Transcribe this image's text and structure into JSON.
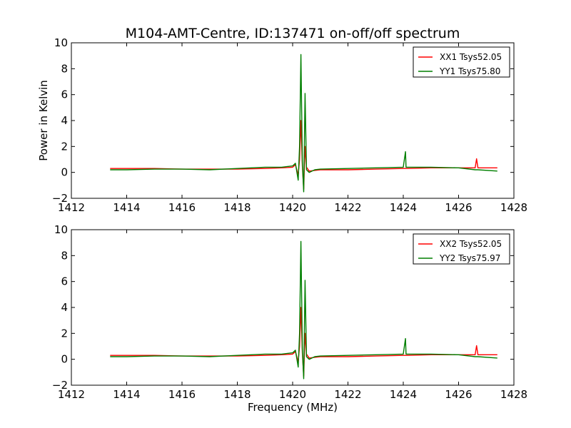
{
  "figure": {
    "title": "M104-AMT-Centre, ID:137471 on-off/off spectrum",
    "ylabel": "Power in Kelvin",
    "xlabel": "Frequency (MHz)"
  },
  "colors": {
    "xx": "#ff0000",
    "yy": "#007f00"
  },
  "chart_data": [
    {
      "type": "line",
      "title": "M104-AMT-Centre, ID:137471 on-off/off spectrum",
      "ylabel": "Power in Kelvin",
      "xlabel": "",
      "xlim": [
        1412,
        1428
      ],
      "ylim": [
        -2,
        10
      ],
      "xticks": [
        "1412",
        "1414",
        "1416",
        "1418",
        "1420",
        "1422",
        "1424",
        "1426",
        "1428"
      ],
      "yticks": [
        "−2",
        "0",
        "2",
        "4",
        "6",
        "8",
        "10"
      ],
      "legend_position": "top-right",
      "grid": false,
      "series": [
        {
          "name": "XX1 Tsys52.05",
          "color": "#ff0000",
          "x": [
            1413.4,
            1414,
            1415,
            1416,
            1417,
            1418,
            1419,
            1419.6,
            1420.0,
            1420.1,
            1420.2,
            1420.25,
            1420.3,
            1420.35,
            1420.4,
            1420.45,
            1420.5,
            1420.6,
            1420.8,
            1421,
            1422,
            1423,
            1424,
            1424.08,
            1424.1,
            1424.15,
            1425,
            1426,
            1426.6,
            1426.65,
            1426.7,
            1427.4
          ],
          "y": [
            0.3,
            0.3,
            0.3,
            0.25,
            0.25,
            0.25,
            0.3,
            0.35,
            0.4,
            0.6,
            -0.2,
            1.0,
            4.0,
            0.5,
            -1.3,
            2.0,
            0.4,
            0.1,
            0.15,
            0.2,
            0.2,
            0.25,
            0.3,
            0.3,
            0.3,
            0.3,
            0.35,
            0.35,
            0.35,
            1.05,
            0.35,
            0.35
          ]
        },
        {
          "name": "YY1 Tsys75.80",
          "color": "#007f00",
          "x": [
            1413.4,
            1414,
            1415,
            1416,
            1417,
            1418,
            1419,
            1419.6,
            1420.0,
            1420.1,
            1420.2,
            1420.25,
            1420.3,
            1420.35,
            1420.4,
            1420.45,
            1420.5,
            1420.6,
            1420.8,
            1421,
            1422,
            1423,
            1424,
            1424.08,
            1424.1,
            1424.15,
            1425,
            1426,
            1426.6,
            1426.65,
            1426.7,
            1427.4
          ],
          "y": [
            0.2,
            0.2,
            0.25,
            0.25,
            0.2,
            0.3,
            0.4,
            0.4,
            0.5,
            0.7,
            -0.6,
            2.0,
            9.1,
            0.8,
            -1.5,
            6.1,
            0.2,
            0.0,
            0.2,
            0.25,
            0.3,
            0.35,
            0.4,
            1.6,
            0.4,
            0.4,
            0.4,
            0.35,
            0.2,
            0.2,
            0.2,
            0.1
          ]
        }
      ]
    },
    {
      "type": "line",
      "title": "",
      "ylabel": "",
      "xlabel": "Frequency (MHz)",
      "xlim": [
        1412,
        1428
      ],
      "ylim": [
        -2,
        10
      ],
      "xticks": [
        "1412",
        "1414",
        "1416",
        "1418",
        "1420",
        "1422",
        "1424",
        "1426",
        "1428"
      ],
      "yticks": [
        "−2",
        "0",
        "2",
        "4",
        "6",
        "8",
        "10"
      ],
      "legend_position": "top-right",
      "grid": false,
      "series": [
        {
          "name": "XX2 Tsys52.05",
          "color": "#ff0000",
          "x": [
            1413.4,
            1414,
            1415,
            1416,
            1417,
            1418,
            1419,
            1419.6,
            1420.0,
            1420.1,
            1420.2,
            1420.25,
            1420.3,
            1420.35,
            1420.4,
            1420.45,
            1420.5,
            1420.6,
            1420.8,
            1421,
            1422,
            1423,
            1424,
            1424.08,
            1424.1,
            1424.15,
            1425,
            1426,
            1426.6,
            1426.65,
            1426.7,
            1427.4
          ],
          "y": [
            0.3,
            0.3,
            0.3,
            0.25,
            0.25,
            0.25,
            0.3,
            0.35,
            0.4,
            0.6,
            -0.2,
            1.0,
            4.0,
            0.5,
            -1.3,
            2.0,
            0.4,
            0.1,
            0.15,
            0.2,
            0.2,
            0.25,
            0.3,
            0.3,
            0.3,
            0.3,
            0.35,
            0.35,
            0.35,
            1.05,
            0.35,
            0.35
          ]
        },
        {
          "name": "YY2 Tsys75.97",
          "color": "#007f00",
          "x": [
            1413.4,
            1414,
            1415,
            1416,
            1417,
            1418,
            1419,
            1419.6,
            1420.0,
            1420.1,
            1420.2,
            1420.25,
            1420.3,
            1420.35,
            1420.4,
            1420.45,
            1420.5,
            1420.6,
            1420.8,
            1421,
            1422,
            1423,
            1424,
            1424.08,
            1424.1,
            1424.15,
            1425,
            1426,
            1426.6,
            1426.65,
            1426.7,
            1427.4
          ],
          "y": [
            0.2,
            0.2,
            0.25,
            0.25,
            0.2,
            0.3,
            0.4,
            0.4,
            0.5,
            0.7,
            -0.6,
            2.0,
            9.1,
            0.8,
            -1.5,
            6.1,
            0.2,
            0.0,
            0.2,
            0.25,
            0.3,
            0.35,
            0.4,
            1.6,
            0.4,
            0.4,
            0.4,
            0.35,
            0.2,
            0.2,
            0.2,
            0.1
          ]
        }
      ]
    }
  ]
}
